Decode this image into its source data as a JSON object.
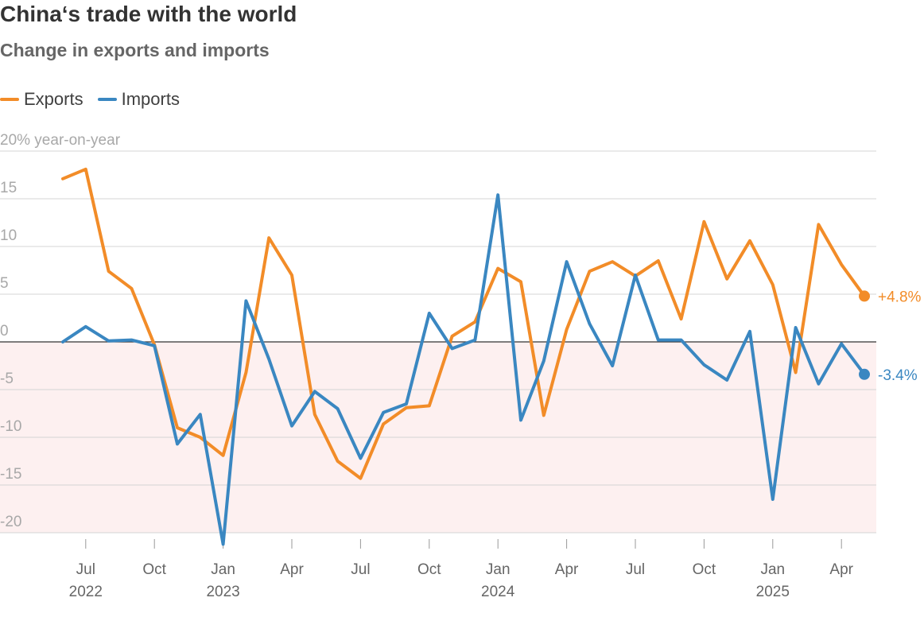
{
  "title": "China‘s trade with the world",
  "subtitle": "Change in exports and imports",
  "chart_data": {
    "type": "line",
    "title": "China‘s trade with the world",
    "subtitle": "Change in exports and imports",
    "ylabel": "20% year-on-year",
    "ylim": [
      -20,
      20
    ],
    "y_ticks": [
      "-20",
      "-15",
      "-10",
      "-5",
      "0",
      "5",
      "10",
      "15",
      "20% year-on-year"
    ],
    "grid": true,
    "legend": "top-left",
    "x": [
      "2022-06",
      "2022-07",
      "2022-08",
      "2022-09",
      "2022-10",
      "2022-11",
      "2022-12",
      "2023-01",
      "2023-02",
      "2023-03",
      "2023-04",
      "2023-05",
      "2023-06",
      "2023-07",
      "2023-08",
      "2023-09",
      "2023-10",
      "2023-11",
      "2023-12",
      "2024-01",
      "2024-02",
      "2024-03",
      "2024-04",
      "2024-05",
      "2024-06",
      "2024-07",
      "2024-08",
      "2024-09",
      "2024-10",
      "2024-11",
      "2024-12",
      "2025-01",
      "2025-02",
      "2025-03",
      "2025-04",
      "2025-05"
    ],
    "x_ticks": [
      {
        "x": "2022-07",
        "label": "Jul",
        "year": "2022"
      },
      {
        "x": "2022-10",
        "label": "Oct",
        "year": ""
      },
      {
        "x": "2023-01",
        "label": "Jan",
        "year": "2023"
      },
      {
        "x": "2023-04",
        "label": "Apr",
        "year": ""
      },
      {
        "x": "2023-07",
        "label": "Jul",
        "year": ""
      },
      {
        "x": "2023-10",
        "label": "Oct",
        "year": ""
      },
      {
        "x": "2024-01",
        "label": "Jan",
        "year": "2024"
      },
      {
        "x": "2024-04",
        "label": "Apr",
        "year": ""
      },
      {
        "x": "2024-07",
        "label": "Jul",
        "year": ""
      },
      {
        "x": "2024-10",
        "label": "Oct",
        "year": ""
      },
      {
        "x": "2025-01",
        "label": "Jan",
        "year": "2025"
      },
      {
        "x": "2025-04",
        "label": "Apr",
        "year": ""
      }
    ],
    "series": [
      {
        "name": "Exports",
        "color": "#F28C28",
        "end_label": "+4.8%",
        "values": [
          17.1,
          18.1,
          7.4,
          5.6,
          -0.3,
          -9.0,
          -10.0,
          -11.9,
          -3.2,
          10.9,
          7.0,
          -7.6,
          -12.5,
          -14.3,
          -8.6,
          -6.9,
          -6.7,
          0.6,
          2.1,
          7.7,
          6.3,
          -7.7,
          1.3,
          7.4,
          8.4,
          6.9,
          8.5,
          2.4,
          12.6,
          6.6,
          10.6,
          6.0,
          -3.2,
          12.3,
          8.1,
          4.8
        ]
      },
      {
        "name": "Imports",
        "color": "#3A87C1",
        "end_label": "-3.4%",
        "values": [
          0.0,
          1.6,
          0.1,
          0.2,
          -0.4,
          -10.7,
          -7.6,
          -21.2,
          4.3,
          -1.8,
          -8.8,
          -5.2,
          -7.0,
          -12.2,
          -7.4,
          -6.5,
          3.0,
          -0.7,
          0.2,
          15.4,
          -8.2,
          -2.0,
          8.4,
          1.9,
          -2.5,
          7.0,
          0.2,
          0.2,
          -2.4,
          -4.0,
          1.1,
          -16.5,
          1.5,
          -4.4,
          -0.2,
          -3.4
        ]
      }
    ]
  }
}
